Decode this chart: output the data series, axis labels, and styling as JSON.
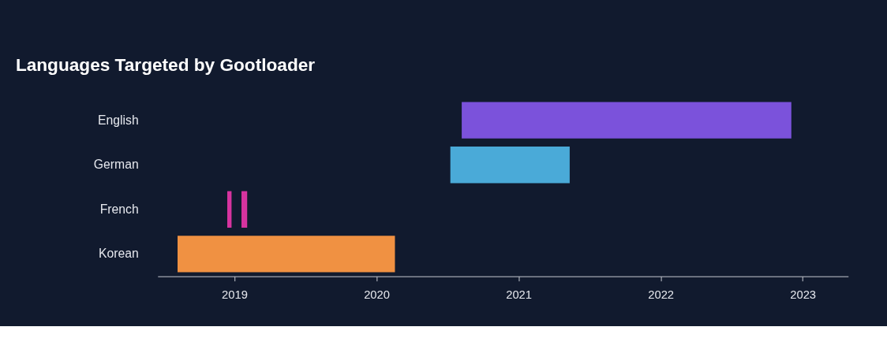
{
  "chart_data": {
    "type": "bar",
    "orientation": "horizontal",
    "title": "Languages Targeted by Gootloader",
    "categories": [
      "English",
      "German",
      "French",
      "Korean"
    ],
    "series": [
      {
        "colors": [
          "#7b52db",
          "#4aaad8",
          "#d6339f",
          "#f09142"
        ],
        "base": [
          2020.6,
          2020.52,
          2018.95,
          2018.6
        ],
        "values": [
          2.32,
          0.84,
          0.03,
          1.53
        ]
      },
      {
        "colors": [
          null,
          null,
          "#d6339f",
          null
        ],
        "base": [
          null,
          null,
          2019.05,
          null
        ],
        "values": [
          null,
          null,
          0.04,
          null
        ]
      }
    ],
    "xlim": [
      2018.46,
      2023.32
    ],
    "xticks": [
      2019,
      2020,
      2021,
      2022,
      2023
    ],
    "grid": false
  }
}
